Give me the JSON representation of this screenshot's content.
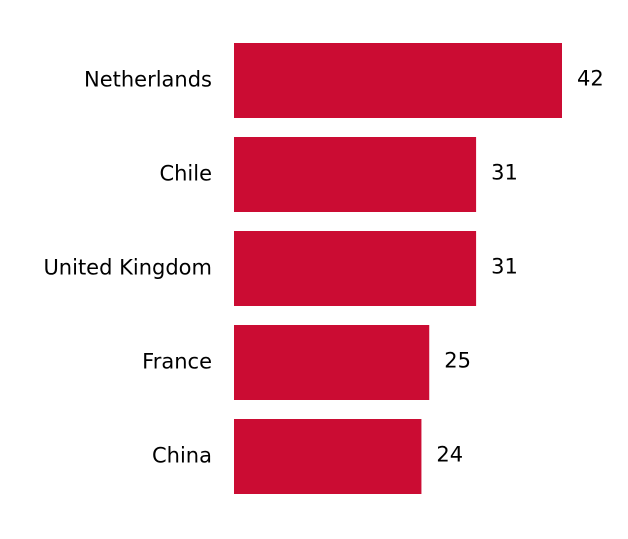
{
  "chart_data": {
    "type": "hbar",
    "categories": [
      "Netherlands",
      "Chile",
      "United Kingdom",
      "France",
      "China"
    ],
    "values": [
      42,
      31,
      31,
      25,
      24
    ],
    "color": "#cb0c33"
  }
}
